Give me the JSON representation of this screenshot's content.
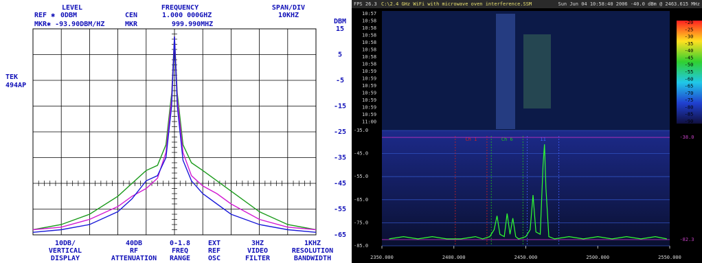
{
  "chart_data": [
    {
      "type": "line",
      "header": {
        "level": "LEVEL",
        "ref": "REF ✱",
        "ref_value": "0DBM",
        "mkr": "MKR✱ -93.90DBM/HZ",
        "frequency": "FREQUENCY",
        "cen": "CEN",
        "cen_value": "1.000 000GHZ",
        "mkr_label": "MKR",
        "mkr_value": "999.990MHZ",
        "span": "SPAN/DIV",
        "span_value": "10KHZ"
      },
      "y_unit": "DBM",
      "brand": [
        "TEK",
        "494AP"
      ],
      "footer": [
        [
          "10DB/",
          "VERTICAL",
          "DISPLAY"
        ],
        [
          "40DB",
          "RF",
          "ATTENUATION"
        ],
        [
          "0-1.8",
          "FREQ",
          "RANGE"
        ],
        [
          "EXT",
          "REF",
          "OSC"
        ],
        [
          "3HZ",
          "VIDEO",
          "FILTER"
        ],
        [
          "1KHZ",
          "RESOLUTION",
          "BANDWIDTH"
        ]
      ],
      "x": [
        -50,
        -40,
        -30,
        -20,
        -15,
        -10,
        -6,
        -3,
        -1,
        0,
        1,
        3,
        6,
        10,
        15,
        20,
        30,
        40,
        50
      ],
      "series": [
        {
          "color": "#1a9a1a",
          "values": [
            -63,
            -61,
            -57,
            -50,
            -45,
            -40,
            -38,
            -30,
            -10,
            12,
            -10,
            -30,
            -37,
            -40,
            -44,
            -48,
            -56,
            -61,
            -63
          ]
        },
        {
          "color": "#d21ad2",
          "values": [
            -63,
            -62,
            -59,
            -54,
            -50,
            -47,
            -43,
            -33,
            -12,
            12,
            -12,
            -33,
            -42,
            -46,
            -49,
            -53,
            -59,
            -62,
            -63
          ]
        },
        {
          "color": "#1a1ad8",
          "values": [
            -64,
            -63,
            -61,
            -56,
            -51,
            -44,
            -42,
            -35,
            -15,
            12,
            -15,
            -36,
            -44,
            -49,
            -53,
            -57,
            -61,
            -63,
            -64
          ]
        }
      ],
      "xlim": [
        -50,
        50
      ],
      "ylim": [
        -65,
        15
      ],
      "yticks": [
        15,
        5,
        -5,
        -15,
        -25,
        -35,
        -45,
        -55,
        -65
      ],
      "grid": true
    },
    {
      "type": "line",
      "status": {
        "fps": "FPS 26.3",
        "file": "C:\\2.4 GHz WiFi with microwave oven interference.SSM",
        "time": "Sun Jun 04 10:58:40 2006  -40.0 dBm @ 2463.615 MHz"
      },
      "waterfall": {
        "times": [
          "10:57",
          "10:58",
          "10:58",
          "10:58",
          "10:58",
          "10:58",
          "10:58",
          "10:58",
          "10:59",
          "10:59",
          "10:59",
          "10:59",
          "10:59",
          "10:59",
          "10:59",
          "11:00"
        ],
        "scale": [
          -20,
          -25,
          -30,
          -35,
          -40,
          -45,
          -50,
          -55,
          -60,
          -65,
          -70,
          -75,
          -80,
          -85,
          -90
        ]
      },
      "channels": [
        {
          "name": "Ch 1",
          "color": "#d02020",
          "edges": [
            2401,
            2423
          ]
        },
        {
          "name": "Ch 6",
          "color": "#20c020",
          "edges": [
            2426,
            2448
          ]
        },
        {
          "name": "11",
          "color": "#4060ff",
          "edges": [
            2451,
            2473
          ]
        }
      ],
      "thresholds": [
        {
          "value": -38,
          "label": "-38.0"
        },
        {
          "value": -82.3,
          "label": "-82.3"
        }
      ],
      "x": [
        2355,
        2365,
        2375,
        2385,
        2395,
        2405,
        2415,
        2420,
        2425,
        2428,
        2430,
        2432,
        2435,
        2437,
        2439,
        2441,
        2443,
        2445,
        2450,
        2453,
        2455,
        2457,
        2460,
        2462,
        2463,
        2464,
        2466,
        2470,
        2480,
        2490,
        2500,
        2510,
        2520,
        2530,
        2540,
        2548
      ],
      "series": [
        {
          "color": "#30ff30",
          "values": [
            -82,
            -81,
            -82,
            -81,
            -82,
            -82,
            -81,
            -82,
            -81,
            -78,
            -72,
            -80,
            -81,
            -71,
            -80,
            -73,
            -81,
            -82,
            -81,
            -78,
            -63,
            -79,
            -80,
            -50,
            -41,
            -60,
            -81,
            -82,
            -81,
            -82,
            -81,
            -82,
            -81,
            -82,
            -81,
            -82
          ]
        }
      ],
      "xlim": [
        2350,
        2550
      ],
      "ylim": [
        -85,
        -35
      ],
      "xticks": [
        {
          "value": 2350,
          "label": "2350.000"
        },
        {
          "value": 2400,
          "label": "2400.000"
        },
        {
          "value": 2450,
          "label": "2450.000"
        },
        {
          "value": 2500,
          "label": "2500.000"
        },
        {
          "value": 2550,
          "label": "2550.000"
        }
      ],
      "yticks": [
        {
          "value": -35,
          "label": "-35.0"
        },
        {
          "value": -45,
          "label": "-45.0"
        },
        {
          "value": -55,
          "label": "-55.0"
        },
        {
          "value": -65,
          "label": "-65.0"
        },
        {
          "value": -75,
          "label": "-75.0"
        },
        {
          "value": -85,
          "label": "-85.0"
        }
      ],
      "grid": true
    }
  ]
}
